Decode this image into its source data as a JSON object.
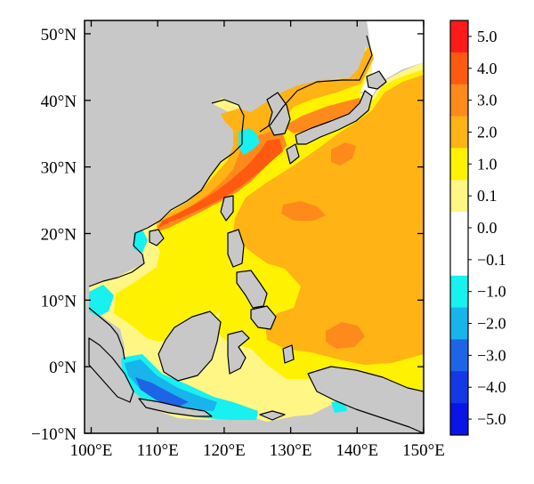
{
  "map": {
    "lon_range": [
      99,
      150
    ],
    "lat_range": [
      -10,
      52
    ],
    "x_ticks": [
      {
        "lon": 100,
        "label": "100°E"
      },
      {
        "lon": 110,
        "label": "110°E"
      },
      {
        "lon": 120,
        "label": "120°E"
      },
      {
        "lon": 130,
        "label": "130°E"
      },
      {
        "lon": 140,
        "label": "140°E"
      },
      {
        "lon": 150,
        "label": "150°E"
      }
    ],
    "y_ticks": [
      {
        "lat": 50,
        "label": "50°N"
      },
      {
        "lat": 40,
        "label": "40°N"
      },
      {
        "lat": 30,
        "label": "30°N"
      },
      {
        "lat": 20,
        "label": "20°N"
      },
      {
        "lat": 10,
        "label": "10°N"
      },
      {
        "lat": 0,
        "label": "0°N"
      },
      {
        "lat": -10,
        "label": "−10°N"
      }
    ],
    "land_color": "#c8c8c8"
  },
  "colorbar": {
    "bins": [
      {
        "color": "#ff1a1a",
        "label": "5.0"
      },
      {
        "color": "#ff5a10",
        "label": "4.0"
      },
      {
        "color": "#ff8a1c",
        "label": "3.0"
      },
      {
        "color": "#ffb314",
        "label": "2.0"
      },
      {
        "color": "#fff200",
        "label": "1.0"
      },
      {
        "color": "#fff685",
        "label": "0.1"
      },
      {
        "color": "#ffffff",
        "label": "0.0"
      },
      {
        "color": "#ffffff",
        "label": "−0.1"
      },
      {
        "color": "#19f0f0",
        "label": "−1.0"
      },
      {
        "color": "#18b4ec",
        "label": "−2.0"
      },
      {
        "color": "#1e64e6",
        "label": "−3.0"
      },
      {
        "color": "#1438e6",
        "label": "−4.0"
      },
      {
        "color": "#0a14e6",
        "label": "−5.0"
      }
    ]
  },
  "colors": {
    "sea_level_1": "#fff685",
    "sea_level_2": "#fff200",
    "sea_level_3": "#ffb314",
    "sea_level_4": "#ff8a1c",
    "sea_level_5": "#ff5a10",
    "neg_level_1": "#19f0f0",
    "neg_level_2": "#18b4ec",
    "neg_level_3": "#1e64e6"
  }
}
